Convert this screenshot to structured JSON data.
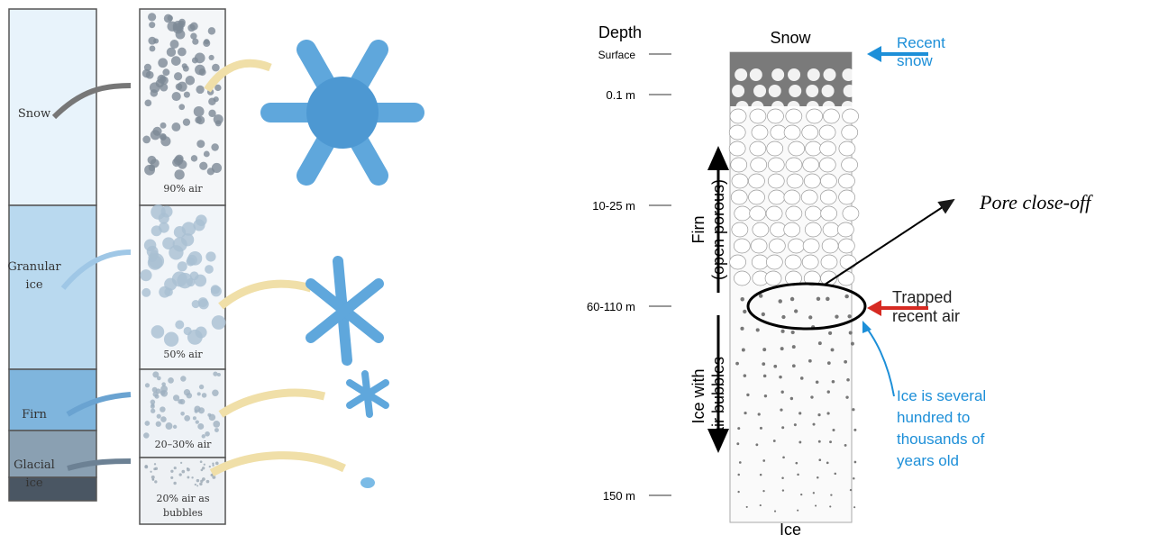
{
  "left": {
    "layers": [
      {
        "label": [
          "Snow"
        ],
        "air": [
          "90% air"
        ]
      },
      {
        "label": [
          "Granular",
          "ice"
        ],
        "air": [
          "50% air"
        ]
      },
      {
        "label": [
          "Firn"
        ],
        "air": [
          "20–30% air"
        ]
      },
      {
        "label": [
          "Glacial",
          "ice"
        ],
        "air": [
          "20% air as",
          "bubbles"
        ]
      }
    ]
  },
  "right": {
    "depth_title": "Depth",
    "column_top": "Snow",
    "column_bottom": "Ice",
    "depths": [
      "Surface",
      "0.1 m",
      "10-25 m",
      "60-110 m",
      "150 m"
    ],
    "firn_label": [
      "Firn",
      "(open porous)"
    ],
    "bubbles_label": [
      "Ice with",
      "air bubbles"
    ],
    "recent_snow": [
      "Recent",
      "snow"
    ],
    "trapped_air": [
      "Trapped",
      "recent air"
    ],
    "ice_age": [
      "Ice is several",
      "hundred to",
      "thousands of",
      "years old"
    ],
    "pore_close_off": "Pore close-off"
  }
}
